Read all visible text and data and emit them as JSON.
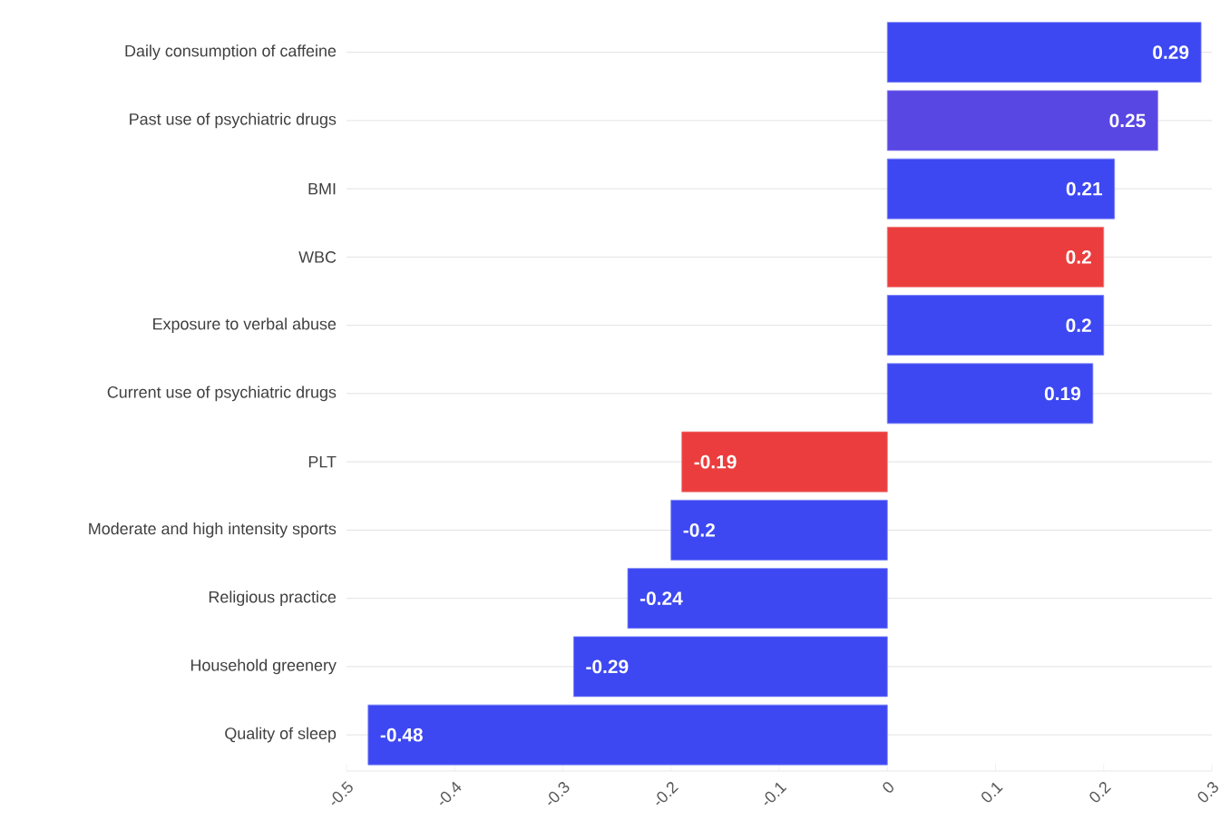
{
  "chart_data": {
    "type": "bar",
    "orientation": "horizontal",
    "categories": [
      "Daily consumption of caffeine",
      "Past use of psychiatric drugs",
      "BMI",
      "WBC",
      "Exposure to verbal abuse",
      "Current use of psychiatric drugs",
      "PLT",
      "Moderate and high intensity sports",
      "Religious practice",
      "Household greenery",
      "Quality of sleep"
    ],
    "values": [
      0.29,
      0.25,
      0.21,
      0.2,
      0.2,
      0.19,
      -0.19,
      -0.2,
      -0.24,
      -0.29,
      -0.48
    ],
    "colors": [
      "#3d48f2",
      "#5947e4",
      "#3d48f2",
      "#eb3d3d",
      "#3d48f2",
      "#3d48f2",
      "#eb3d3d",
      "#3d48f2",
      "#3d48f2",
      "#3d48f2",
      "#3d48f2"
    ],
    "xlim": [
      -0.5,
      0.3
    ],
    "xticks": [
      -0.5,
      -0.4,
      -0.3,
      -0.2,
      -0.1,
      0,
      0.1,
      0.2,
      0.3
    ],
    "data_labels": true,
    "grid": "y"
  }
}
